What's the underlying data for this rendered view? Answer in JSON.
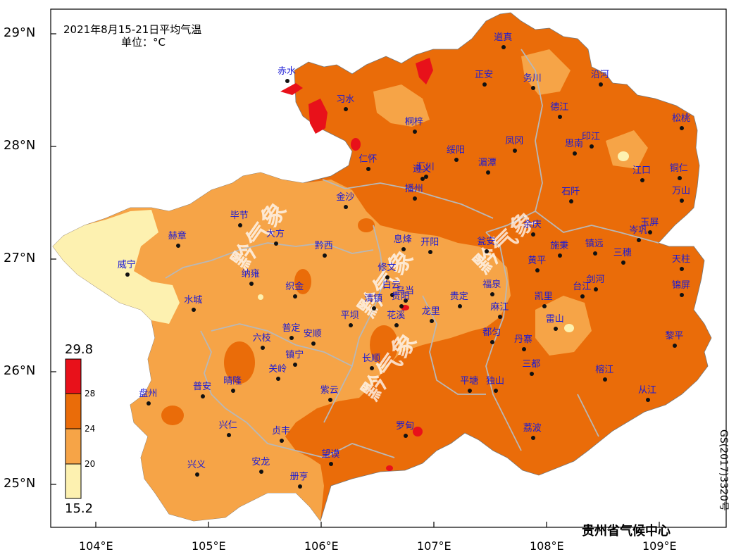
{
  "title": {
    "line1": "2021年8月15-21日平均气温",
    "line2": "单位：°C"
  },
  "source": "贵州省气候中心",
  "map_number": "GS(2017)3320号",
  "watermark": "黔气象",
  "axes": {
    "lat_ticks": [
      "29°N",
      "28°N",
      "27°N",
      "26°N",
      "25°N"
    ],
    "lon_ticks": [
      "104°E",
      "105°E",
      "106°E",
      "107°E",
      "108°E",
      "109°E"
    ]
  },
  "legend": {
    "max": "29.8",
    "min": "15.2",
    "breaks": [
      "28",
      "24",
      "20"
    ],
    "classes": [
      {
        "range": "28-29.8",
        "color": "#e8111a"
      },
      {
        "range": "24-28",
        "color": "#ea6c09"
      },
      {
        "range": "20-24",
        "color": "#f6a447"
      },
      {
        "range": "15.2-20",
        "color": "#fdf1b0"
      }
    ]
  },
  "cities": [
    {
      "name": "道真",
      "lon": 107.62,
      "lat": 28.88
    },
    {
      "name": "赤水",
      "lon": 105.7,
      "lat": 28.58
    },
    {
      "name": "沿河",
      "lon": 108.48,
      "lat": 28.55
    },
    {
      "name": "正安",
      "lon": 107.45,
      "lat": 28.55
    },
    {
      "name": "务川",
      "lon": 107.88,
      "lat": 28.52
    },
    {
      "name": "习水",
      "lon": 106.22,
      "lat": 28.33
    },
    {
      "name": "德江",
      "lon": 108.12,
      "lat": 28.26
    },
    {
      "name": "松桃",
      "lon": 109.2,
      "lat": 28.16
    },
    {
      "name": "桐梓",
      "lon": 106.83,
      "lat": 28.13
    },
    {
      "name": "凤冈",
      "lon": 107.72,
      "lat": 27.96
    },
    {
      "name": "印江",
      "lon": 108.4,
      "lat": 28.0
    },
    {
      "name": "思南",
      "lon": 108.25,
      "lat": 27.94
    },
    {
      "name": "绥阳",
      "lon": 107.2,
      "lat": 27.88
    },
    {
      "name": "仁怀",
      "lon": 106.42,
      "lat": 27.8
    },
    {
      "name": "湄潭",
      "lon": 107.48,
      "lat": 27.77
    },
    {
      "name": "汇川",
      "lon": 106.93,
      "lat": 27.73
    },
    {
      "name": "遵义",
      "lon": 106.9,
      "lat": 27.71
    },
    {
      "name": "江口",
      "lon": 108.85,
      "lat": 27.7
    },
    {
      "name": "铜仁",
      "lon": 109.18,
      "lat": 27.72
    },
    {
      "name": "播州",
      "lon": 106.83,
      "lat": 27.54
    },
    {
      "name": "石阡",
      "lon": 108.22,
      "lat": 27.51
    },
    {
      "name": "万山",
      "lon": 109.2,
      "lat": 27.52
    },
    {
      "name": "金沙",
      "lon": 106.22,
      "lat": 27.46
    },
    {
      "name": "毕节",
      "lon": 105.28,
      "lat": 27.3
    },
    {
      "name": "大方",
      "lon": 105.6,
      "lat": 27.14
    },
    {
      "name": "赫章",
      "lon": 104.73,
      "lat": 27.12
    },
    {
      "name": "余庆",
      "lon": 107.88,
      "lat": 27.22
    },
    {
      "name": "玉屏",
      "lon": 108.92,
      "lat": 27.24
    },
    {
      "name": "岑巩",
      "lon": 108.82,
      "lat": 27.17
    },
    {
      "name": "息烽",
      "lon": 106.73,
      "lat": 27.09
    },
    {
      "name": "开阳",
      "lon": 106.97,
      "lat": 27.06
    },
    {
      "name": "黔西",
      "lon": 106.03,
      "lat": 27.03
    },
    {
      "name": "瓮安",
      "lon": 107.47,
      "lat": 27.07
    },
    {
      "name": "施秉",
      "lon": 108.12,
      "lat": 27.03
    },
    {
      "name": "镇远",
      "lon": 108.43,
      "lat": 27.05
    },
    {
      "name": "三穗",
      "lon": 108.68,
      "lat": 26.97
    },
    {
      "name": "威宁",
      "lon": 104.28,
      "lat": 26.86
    },
    {
      "name": "修文",
      "lon": 106.59,
      "lat": 26.84
    },
    {
      "name": "黄平",
      "lon": 107.92,
      "lat": 26.9
    },
    {
      "name": "天柱",
      "lon": 109.2,
      "lat": 26.91
    },
    {
      "name": "纳雍",
      "lon": 105.38,
      "lat": 26.78
    },
    {
      "name": "织金",
      "lon": 105.77,
      "lat": 26.67
    },
    {
      "name": "白云",
      "lon": 106.63,
      "lat": 26.68
    },
    {
      "name": "乌当",
      "lon": 106.75,
      "lat": 26.63
    },
    {
      "name": "福泉",
      "lon": 107.52,
      "lat": 26.69
    },
    {
      "name": "台江",
      "lon": 108.32,
      "lat": 26.67
    },
    {
      "name": "剑河",
      "lon": 108.44,
      "lat": 26.73
    },
    {
      "name": "锦屏",
      "lon": 109.2,
      "lat": 26.68
    },
    {
      "name": "凯里",
      "lon": 107.98,
      "lat": 26.58
    },
    {
      "name": "清镇",
      "lon": 106.47,
      "lat": 26.56
    },
    {
      "name": "贵阳",
      "lon": 106.71,
      "lat": 26.58
    },
    {
      "name": "贵定",
      "lon": 107.23,
      "lat": 26.58
    },
    {
      "name": "水城",
      "lon": 104.87,
      "lat": 26.55
    },
    {
      "name": "麻江",
      "lon": 107.59,
      "lat": 26.49
    },
    {
      "name": "龙里",
      "lon": 106.98,
      "lat": 26.45
    },
    {
      "name": "花溪",
      "lon": 106.67,
      "lat": 26.41
    },
    {
      "name": "平坝",
      "lon": 106.26,
      "lat": 26.41
    },
    {
      "name": "雷山",
      "lon": 108.08,
      "lat": 26.38
    },
    {
      "name": "都匀",
      "lon": 107.52,
      "lat": 26.26
    },
    {
      "name": "普定",
      "lon": 105.74,
      "lat": 26.3
    },
    {
      "name": "安顺",
      "lon": 105.93,
      "lat": 26.25
    },
    {
      "name": "黎平",
      "lon": 109.14,
      "lat": 26.23
    },
    {
      "name": "六枝",
      "lon": 105.48,
      "lat": 26.21
    },
    {
      "name": "丹寨",
      "lon": 107.8,
      "lat": 26.2
    },
    {
      "name": "长顺",
      "lon": 106.45,
      "lat": 26.03
    },
    {
      "name": "镇宁",
      "lon": 105.77,
      "lat": 26.06
    },
    {
      "name": "三都",
      "lon": 107.87,
      "lat": 25.98
    },
    {
      "name": "关岭",
      "lon": 105.62,
      "lat": 25.94
    },
    {
      "name": "榕江",
      "lon": 108.52,
      "lat": 25.93
    },
    {
      "name": "平塘",
      "lon": 107.32,
      "lat": 25.83
    },
    {
      "name": "独山",
      "lon": 107.55,
      "lat": 25.83
    },
    {
      "name": "紫云",
      "lon": 106.08,
      "lat": 25.75
    },
    {
      "name": "盘州",
      "lon": 104.47,
      "lat": 25.72
    },
    {
      "name": "晴隆",
      "lon": 105.22,
      "lat": 25.83
    },
    {
      "name": "普安",
      "lon": 104.95,
      "lat": 25.78
    },
    {
      "name": "从江",
      "lon": 108.9,
      "lat": 25.75
    },
    {
      "name": "兴仁",
      "lon": 105.18,
      "lat": 25.44
    },
    {
      "name": "贞丰",
      "lon": 105.65,
      "lat": 25.39
    },
    {
      "name": "罗甸",
      "lon": 106.75,
      "lat": 25.43
    },
    {
      "name": "荔波",
      "lon": 107.88,
      "lat": 25.41
    },
    {
      "name": "望谟",
      "lon": 106.09,
      "lat": 25.18
    },
    {
      "name": "安龙",
      "lon": 105.47,
      "lat": 25.11
    },
    {
      "name": "兴义",
      "lon": 104.9,
      "lat": 25.09
    },
    {
      "name": "册亨",
      "lon": 105.81,
      "lat": 24.98
    }
  ]
}
